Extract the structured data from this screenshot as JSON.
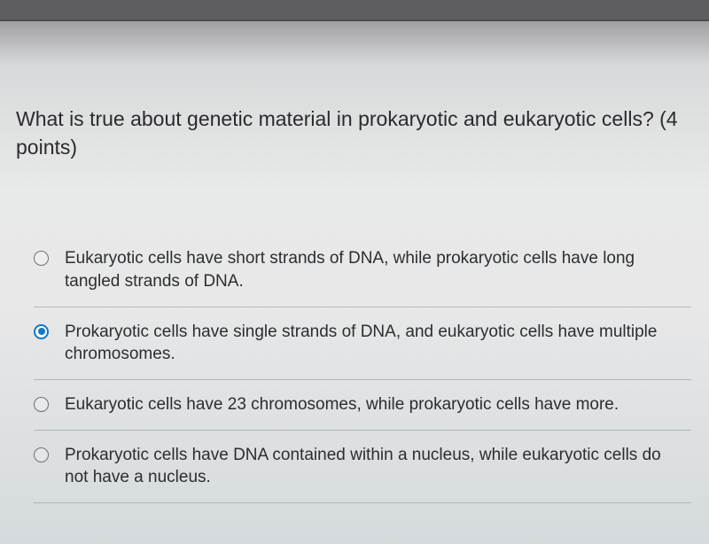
{
  "header": {
    "label_fragment": ""
  },
  "question": {
    "prompt": "What is true about genetic material in prokaryotic and eukaryotic cells? (4 points)",
    "prompt_fontsize": 23,
    "prompt_color": "#2b2b2e"
  },
  "options": [
    {
      "text": "Eukaryotic cells have short strands of DNA, while prokaryotic cells have long tangled strands of DNA.",
      "selected": false
    },
    {
      "text": "Prokaryotic cells have single strands of DNA, and eukaryotic cells have multiple chromosomes.",
      "selected": true
    },
    {
      "text": "Eukaryotic cells have 23 chromosomes, while prokaryotic cells have more.",
      "selected": false
    },
    {
      "text": "Prokaryotic cells have DNA contained within a nucleus, while eukaryotic cells do not have a nucleus.",
      "selected": false
    }
  ],
  "styles": {
    "option_fontsize": 19,
    "option_color": "#2b2e31",
    "divider_color": "rgba(140,145,150,0.55)",
    "radio_border": "#6d7175",
    "radio_selected_color": "#1178c9",
    "background_gradient_top": "#8a8a8d",
    "background_gradient_bottom": "#d5dadd"
  }
}
